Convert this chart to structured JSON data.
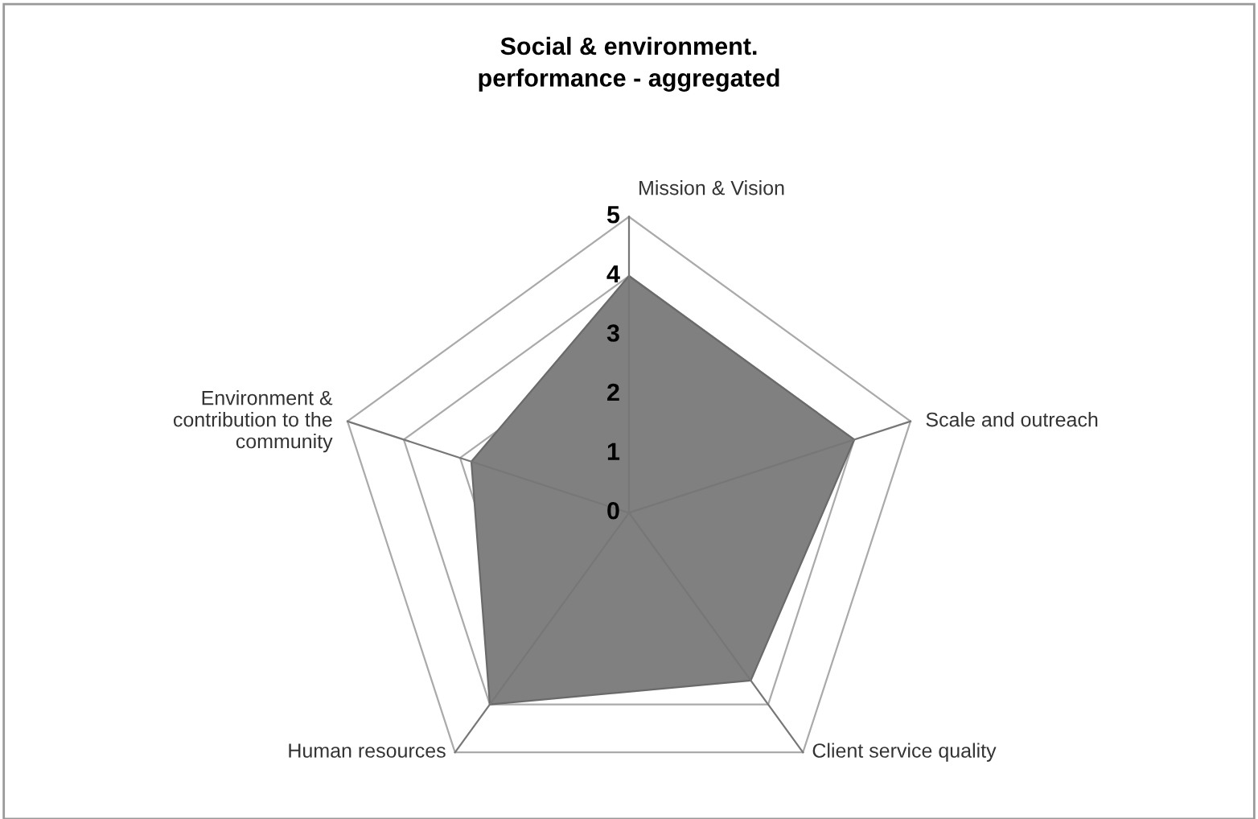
{
  "chart_data": {
    "type": "radar",
    "title": "Social & environment.\nperformance - aggregated",
    "categories": [
      "Mission & Vision",
      "Scale and outreach",
      "Client service quality",
      "Human resources",
      "Environment &\ncontribution to the\ncommunity"
    ],
    "series": [
      {
        "color": "#808080",
        "values": [
          4,
          4,
          3.5,
          4,
          2.8
        ]
      }
    ],
    "ylim": [
      0,
      5
    ],
    "yticks": [
      0,
      1,
      2,
      3,
      4,
      5
    ],
    "grid": true,
    "legend": false
  }
}
